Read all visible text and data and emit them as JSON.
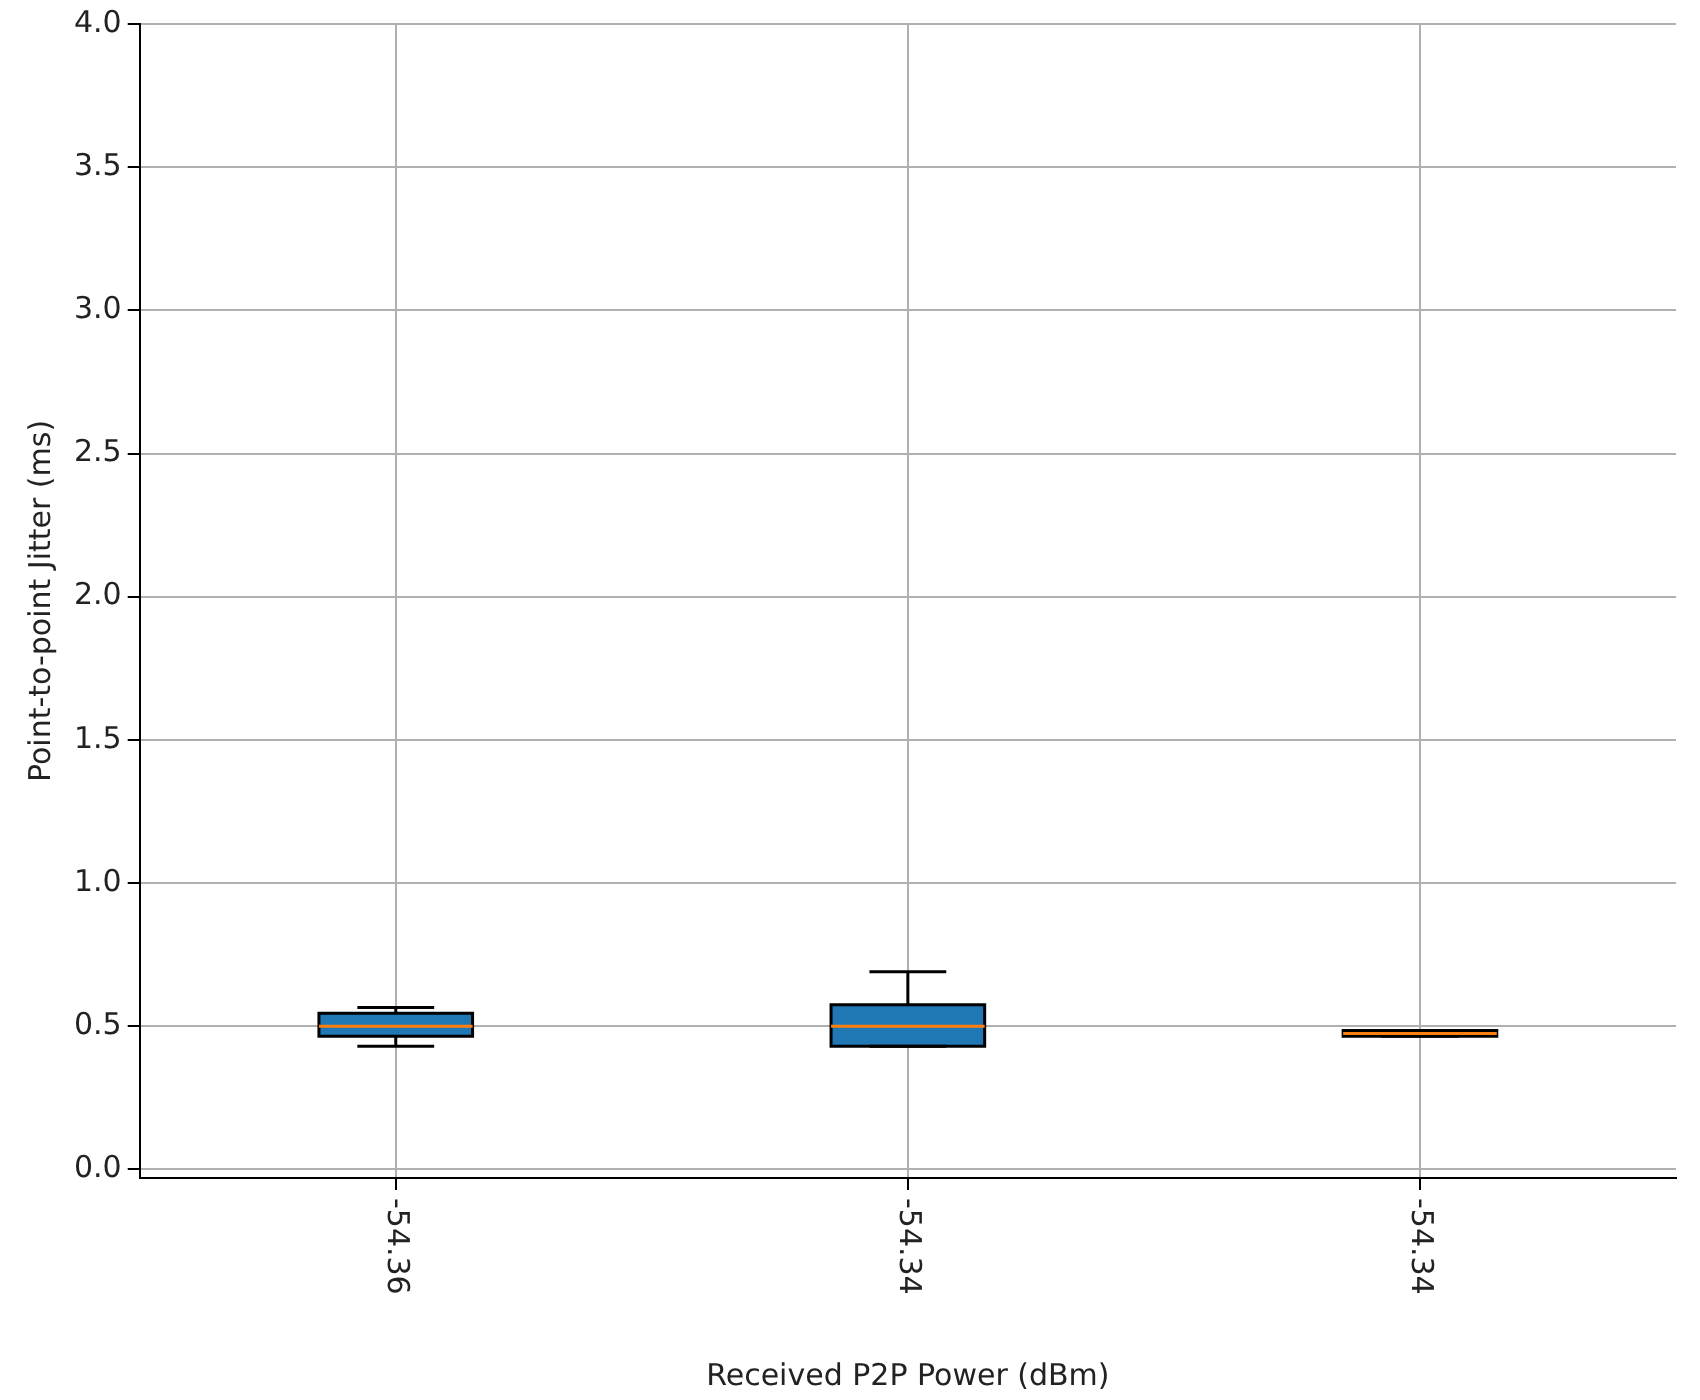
{
  "chart_data": {
    "type": "box",
    "xlabel": "Received P2P Power (dBm)",
    "ylabel": "Point-to-point Jitter (ms)",
    "categories": [
      "-54.36",
      "-54.34",
      "-54.34"
    ],
    "series": [
      {
        "color": "#1f77b4",
        "boxes": [
          {
            "low": 0.43,
            "q1": 0.465,
            "median": 0.5,
            "q3": 0.545,
            "high": 0.565
          },
          {
            "low": 0.43,
            "q1": 0.43,
            "median": 0.5,
            "q3": 0.575,
            "high": 0.69
          },
          {
            "low": 0.465,
            "q1": 0.465,
            "median": 0.475,
            "q3": 0.485,
            "high": 0.485
          }
        ]
      }
    ],
    "ylim": [
      -0.03,
      4.0
    ],
    "yticks": [
      {
        "value": 0,
        "label": "0.0"
      },
      0.5,
      {
        "value": 1,
        "label": "1.0"
      },
      1.5,
      {
        "value": 2,
        "label": "2.0"
      },
      2.5,
      {
        "value": 3,
        "label": "3.0"
      },
      3.5,
      {
        "value": 4,
        "label": "4.0"
      }
    ],
    "grid": true
  }
}
